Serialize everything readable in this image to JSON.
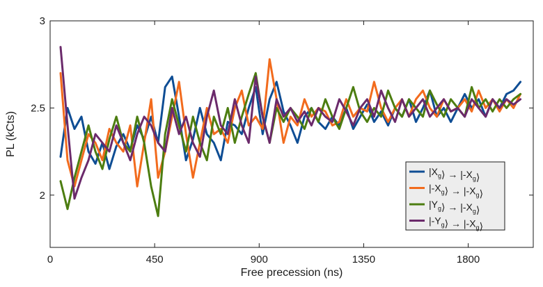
{
  "chart_data": {
    "type": "line",
    "xlabel": "Free precession (ns)",
    "ylabel": "PL (kCts)",
    "xlim": [
      0,
      2080
    ],
    "ylim": [
      1.7,
      3.0
    ],
    "xticks": [
      0,
      450,
      900,
      1350,
      1800
    ],
    "yticks": [
      2,
      2.5,
      3
    ],
    "x": [
      45,
      75,
      105,
      135,
      165,
      195,
      225,
      255,
      285,
      315,
      345,
      375,
      405,
      435,
      465,
      495,
      525,
      555,
      585,
      615,
      645,
      675,
      705,
      735,
      765,
      795,
      825,
      855,
      885,
      915,
      945,
      975,
      1005,
      1035,
      1065,
      1095,
      1125,
      1155,
      1185,
      1215,
      1245,
      1275,
      1305,
      1335,
      1365,
      1395,
      1425,
      1455,
      1485,
      1515,
      1545,
      1575,
      1605,
      1635,
      1665,
      1695,
      1725,
      1755,
      1785,
      1815,
      1845,
      1875,
      1905,
      1935,
      1965,
      1995,
      2025
    ],
    "series": [
      {
        "name": "|X_g⟩ → |-X_g⟩",
        "color": "#0e4d94",
        "values": [
          2.22,
          2.5,
          2.38,
          2.45,
          2.25,
          2.18,
          2.3,
          2.15,
          2.28,
          2.35,
          2.26,
          2.4,
          2.32,
          2.45,
          2.3,
          2.62,
          2.68,
          2.45,
          2.2,
          2.32,
          2.5,
          2.35,
          2.3,
          2.2,
          2.42,
          2.4,
          2.35,
          2.5,
          2.62,
          2.35,
          2.55,
          2.65,
          2.48,
          2.4,
          2.3,
          2.45,
          2.5,
          2.42,
          2.38,
          2.45,
          2.4,
          2.5,
          2.38,
          2.45,
          2.52,
          2.42,
          2.48,
          2.4,
          2.5,
          2.45,
          2.55,
          2.42,
          2.5,
          2.6,
          2.45,
          2.5,
          2.42,
          2.5,
          2.58,
          2.5,
          2.55,
          2.45,
          2.55,
          2.5,
          2.58,
          2.6,
          2.65
        ]
      },
      {
        "name": "|-X_g⟩ → |-X_g⟩",
        "color": "#f26b1d",
        "values": [
          2.7,
          2.2,
          2.05,
          2.2,
          2.35,
          2.3,
          2.2,
          2.38,
          2.3,
          2.25,
          2.4,
          2.05,
          2.3,
          2.55,
          2.1,
          2.25,
          2.45,
          2.65,
          2.35,
          2.1,
          2.3,
          2.5,
          2.35,
          2.38,
          2.3,
          2.5,
          2.6,
          2.4,
          2.45,
          2.38,
          2.78,
          2.55,
          2.3,
          2.45,
          2.4,
          2.55,
          2.45,
          2.5,
          2.48,
          2.4,
          2.42,
          2.55,
          2.45,
          2.5,
          2.48,
          2.65,
          2.5,
          2.42,
          2.5,
          2.55,
          2.45,
          2.55,
          2.6,
          2.5,
          2.45,
          2.55,
          2.48,
          2.5,
          2.55,
          2.48,
          2.6,
          2.5,
          2.55,
          2.48,
          2.55,
          2.5,
          2.58
        ]
      },
      {
        "name": "|Y_g⟩ → |-X_g⟩",
        "color": "#4c7d10",
        "values": [
          2.08,
          1.92,
          2.1,
          2.25,
          2.4,
          2.25,
          2.15,
          2.32,
          2.45,
          2.3,
          2.25,
          2.45,
          2.3,
          2.05,
          1.88,
          2.35,
          2.55,
          2.4,
          2.25,
          2.45,
          2.3,
          2.2,
          2.45,
          2.35,
          2.5,
          2.3,
          2.45,
          2.58,
          2.7,
          2.45,
          2.3,
          2.5,
          2.42,
          2.5,
          2.45,
          2.38,
          2.5,
          2.42,
          2.55,
          2.45,
          2.38,
          2.5,
          2.62,
          2.48,
          2.42,
          2.5,
          2.45,
          2.6,
          2.5,
          2.45,
          2.55,
          2.5,
          2.45,
          2.6,
          2.52,
          2.45,
          2.55,
          2.5,
          2.45,
          2.62,
          2.5,
          2.55,
          2.48,
          2.55,
          2.5,
          2.55,
          2.58
        ]
      },
      {
        "name": "|-Y_g⟩ → |-X_g⟩",
        "color": "#6b2a6b",
        "values": [
          2.85,
          2.4,
          1.98,
          2.1,
          2.2,
          2.35,
          2.3,
          2.25,
          2.4,
          2.3,
          2.2,
          2.35,
          2.45,
          2.4,
          2.3,
          2.25,
          2.5,
          2.35,
          2.45,
          2.3,
          2.22,
          2.45,
          2.6,
          2.4,
          2.35,
          2.55,
          2.4,
          2.3,
          2.68,
          2.45,
          2.3,
          2.55,
          2.45,
          2.5,
          2.42,
          2.48,
          2.4,
          2.5,
          2.45,
          2.42,
          2.55,
          2.48,
          2.4,
          2.5,
          2.55,
          2.45,
          2.6,
          2.5,
          2.42,
          2.55,
          2.45,
          2.5,
          2.55,
          2.45,
          2.5,
          2.55,
          2.48,
          2.5,
          2.45,
          2.55,
          2.5,
          2.45,
          2.55,
          2.5,
          2.55,
          2.52,
          2.55
        ]
      }
    ],
    "legend": {
      "placement": "bottom-right",
      "entries": [
        {
          "left": "|X",
          "sub": "g",
          "mid": "⟩ → |-X",
          "sub2": "g",
          "right": "⟩"
        },
        {
          "left": "|-X",
          "sub": "g",
          "mid": "⟩ → |-X",
          "sub2": "g",
          "right": "⟩"
        },
        {
          "left": "|Y",
          "sub": "g",
          "mid": "⟩ → |-X",
          "sub2": "g",
          "right": "⟩"
        },
        {
          "left": "|-Y",
          "sub": "g",
          "mid": "⟩ → |-X",
          "sub2": "g",
          "right": "⟩"
        }
      ]
    },
    "grid": false
  }
}
